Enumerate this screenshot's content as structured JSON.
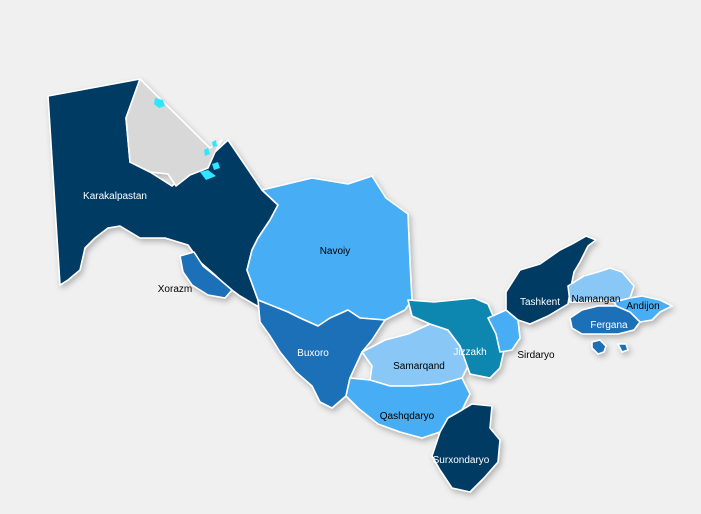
{
  "map": {
    "regions": [
      {
        "id": "karakalpastan",
        "label": "Karakalpastan",
        "color": "#003a63",
        "label_color": "#ffffff"
      },
      {
        "id": "xorazm",
        "label": "Xorazm",
        "color": "#1b6fb8",
        "label_color": "#000000"
      },
      {
        "id": "navoiy",
        "label": "Navoiy",
        "color": "#46adf4",
        "label_color": "#000000"
      },
      {
        "id": "buxoro",
        "label": "Buxoro",
        "color": "#1b6fb8",
        "label_color": "#ffffff"
      },
      {
        "id": "samarqand",
        "label": "Samarqand",
        "color": "#89c8f6",
        "label_color": "#000000"
      },
      {
        "id": "qashqdaryo",
        "label": "Qashqdaryo",
        "color": "#46adf4",
        "label_color": "#000000"
      },
      {
        "id": "surxondaryo",
        "label": "Surxondaryo",
        "color": "#003a63",
        "label_color": "#ffffff"
      },
      {
        "id": "jizzakh",
        "label": "Jizzakh",
        "color": "#0a86b0",
        "label_color": "#ffffff"
      },
      {
        "id": "sirdaryo",
        "label": "Sirdaryo",
        "color": "#46adf4",
        "label_color": "#000000"
      },
      {
        "id": "tashkent",
        "label": "Tashkent",
        "color": "#003a63",
        "label_color": "#ffffff"
      },
      {
        "id": "namangan",
        "label": "Namangan",
        "color": "#89c8f6",
        "label_color": "#000000"
      },
      {
        "id": "andijon",
        "label": "Andijon",
        "color": "#46adf4",
        "label_color": "#000000"
      },
      {
        "id": "fergana",
        "label": "Fergana",
        "color": "#1b6fb8",
        "label_color": "#ffffff"
      }
    ],
    "aral_sea_color": "#d8d8d8",
    "lake_color": "#2ee6ff"
  }
}
